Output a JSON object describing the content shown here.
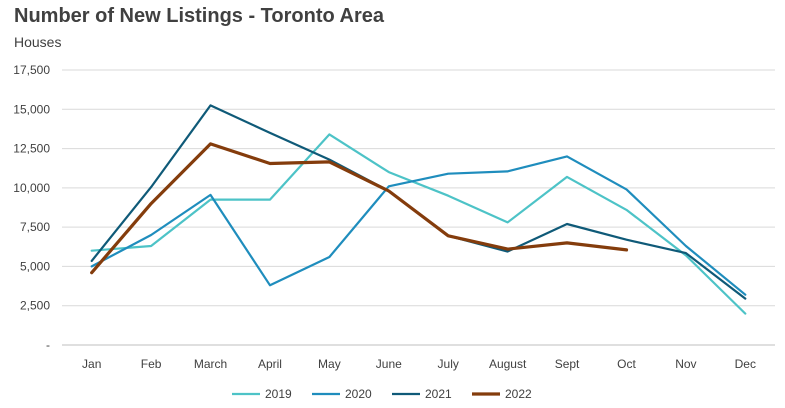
{
  "chart_data": {
    "type": "line",
    "title": "Number of New Listings - Toronto Area",
    "subtitle": "Houses",
    "xlabel": "",
    "ylabel": "",
    "categories": [
      "Jan",
      "Feb",
      "March",
      "April",
      "May",
      "June",
      "July",
      "August",
      "Sept",
      "Oct",
      "Nov",
      "Dec"
    ],
    "y_ticks": [
      0,
      2500,
      5000,
      7500,
      10000,
      12500,
      15000,
      17500
    ],
    "y_tick_labels": [
      "-",
      "2,500",
      "5,000",
      "7,500",
      "10,000",
      "12,500",
      "15,000",
      "17,500"
    ],
    "ylim": [
      0,
      17500
    ],
    "grid": true,
    "legend_position": "bottom",
    "series": [
      {
        "name": "2019",
        "color": "#4dc3c7",
        "values": [
          6000,
          6300,
          9250,
          9250,
          13400,
          11000,
          9500,
          7800,
          10700,
          8600,
          5700,
          2000
        ]
      },
      {
        "name": "2020",
        "color": "#1f8dbd",
        "values": [
          5000,
          7000,
          9550,
          3800,
          5600,
          10100,
          10900,
          11050,
          12000,
          9900,
          6300,
          3200
        ]
      },
      {
        "name": "2021",
        "color": "#0f5a78",
        "values": [
          5350,
          10050,
          15250,
          13500,
          11800,
          9800,
          6950,
          5950,
          7700,
          6700,
          5850,
          2950
        ]
      },
      {
        "name": "2022",
        "color": "#843c0c",
        "values": [
          4600,
          9000,
          12800,
          11550,
          11650,
          9800,
          6950,
          6100,
          6500,
          6050,
          null,
          null
        ]
      }
    ]
  }
}
